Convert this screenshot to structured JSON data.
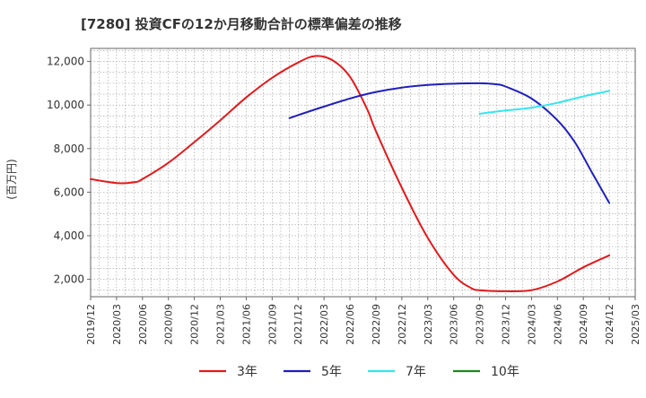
{
  "chart_data": {
    "type": "line",
    "title": "[7280]  投資CFの12か月移動合計の標準偏差の推移",
    "ylabel": "(百万円)",
    "xlabel": "",
    "ylim": [
      1200,
      12600
    ],
    "y_ticks": [
      2000,
      4000,
      6000,
      8000,
      10000,
      12000
    ],
    "y_tick_labels": [
      "2,000",
      "4,000",
      "6,000",
      "8,000",
      "10,000",
      "12,000"
    ],
    "x_ticks": [
      "2019/12",
      "2020/03",
      "2020/06",
      "2020/09",
      "2020/12",
      "2021/03",
      "2021/06",
      "2021/09",
      "2021/12",
      "2022/03",
      "2022/06",
      "2022/09",
      "2022/12",
      "2023/03",
      "2023/06",
      "2023/09",
      "2023/12",
      "2024/03",
      "2024/06",
      "2024/09",
      "2024/12",
      "2025/03"
    ],
    "grid": true,
    "legend_position": "bottom",
    "series": [
      {
        "name": "3年",
        "color": "#e31a1c",
        "points": [
          [
            "2019/12",
            6600
          ],
          [
            "2020/03",
            6420
          ],
          [
            "2020/05",
            6450
          ],
          [
            "2020/06",
            6600
          ],
          [
            "2020/09",
            7350
          ],
          [
            "2020/12",
            8300
          ],
          [
            "2021/03",
            9300
          ],
          [
            "2021/06",
            10350
          ],
          [
            "2021/09",
            11250
          ],
          [
            "2021/12",
            11950
          ],
          [
            "2022/02",
            12250
          ],
          [
            "2022/04",
            12050
          ],
          [
            "2022/06",
            11300
          ],
          [
            "2022/08",
            9800
          ],
          [
            "2022/09",
            8800
          ],
          [
            "2022/12",
            6200
          ],
          [
            "2023/03",
            3900
          ],
          [
            "2023/06",
            2200
          ],
          [
            "2023/08",
            1600
          ],
          [
            "2023/09",
            1500
          ],
          [
            "2023/12",
            1450
          ],
          [
            "2024/03",
            1500
          ],
          [
            "2024/06",
            1900
          ],
          [
            "2024/09",
            2550
          ],
          [
            "2024/12",
            3100
          ]
        ]
      },
      {
        "name": "5年",
        "color": "#1f1fbf",
        "points": [
          [
            "2021/11",
            9400
          ],
          [
            "2022/02",
            9800
          ],
          [
            "2022/06",
            10300
          ],
          [
            "2022/09",
            10600
          ],
          [
            "2022/12",
            10800
          ],
          [
            "2023/03",
            10920
          ],
          [
            "2023/06",
            10980
          ],
          [
            "2023/09",
            11000
          ],
          [
            "2023/11",
            10950
          ],
          [
            "2023/12",
            10850
          ],
          [
            "2024/03",
            10300
          ],
          [
            "2024/06",
            9300
          ],
          [
            "2024/08",
            8300
          ],
          [
            "2024/10",
            6900
          ],
          [
            "2024/12",
            5500
          ]
        ]
      },
      {
        "name": "7年",
        "color": "#33e6f0",
        "points": [
          [
            "2023/09",
            9600
          ],
          [
            "2023/12",
            9750
          ],
          [
            "2024/03",
            9880
          ],
          [
            "2024/06",
            10100
          ],
          [
            "2024/09",
            10400
          ],
          [
            "2024/12",
            10650
          ]
        ]
      },
      {
        "name": "10年",
        "color": "#1a8a1a",
        "points": []
      }
    ]
  }
}
